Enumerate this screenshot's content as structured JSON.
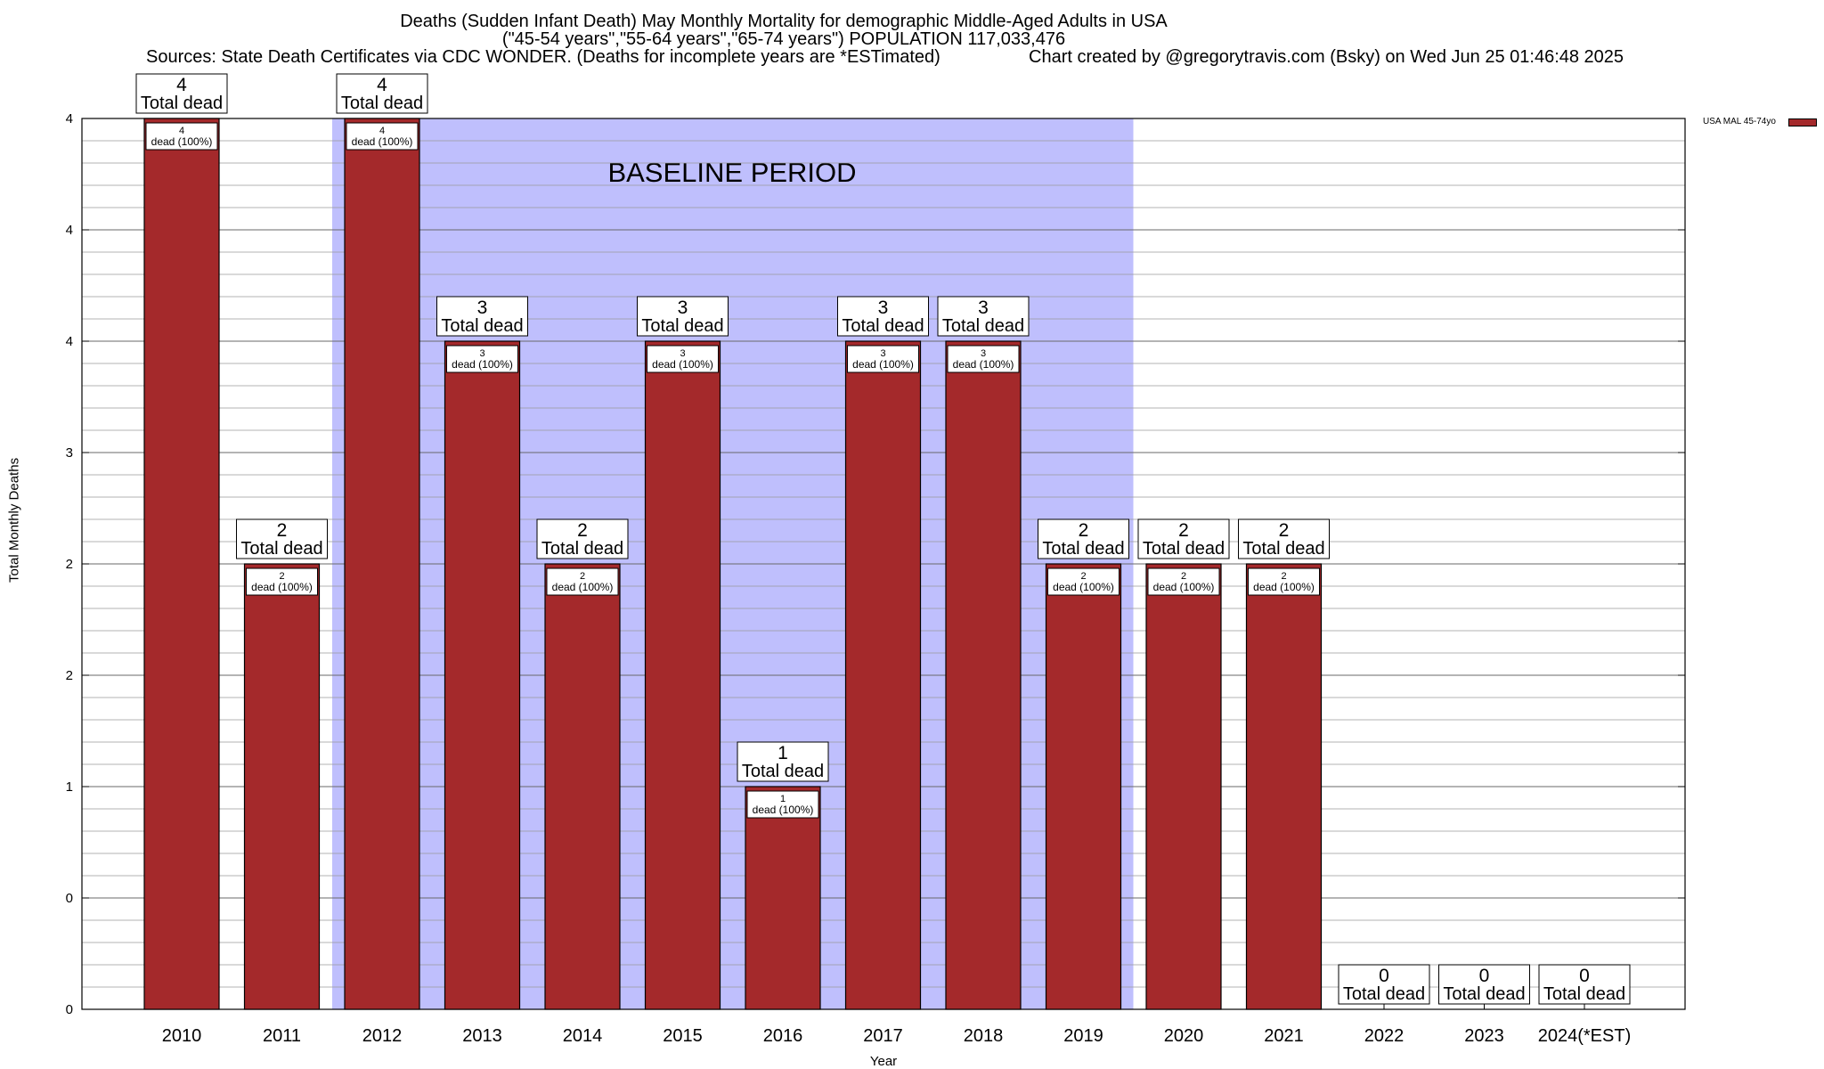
{
  "title_lines": [
    "Deaths (Sudden Infant Death) May Monthly Mortality for demographic Middle-Aged Adults in USA",
    "(\"45-54 years\",\"55-64 years\",\"65-74 years\") POPULATION 117,033,476",
    "Sources: State Death Certificates via CDC WONDER. (Deaths for incomplete years are *ESTimated)",
    "Chart created by @gregorytravis.com (Bsky) on Wed Jun 25 01:46:48 2025"
  ],
  "legend": {
    "label": "USA MAL 45-74yo",
    "color": "#a4292b"
  },
  "chart_data": {
    "type": "bar",
    "xlabel": "Year",
    "ylabel": "Total Monthly Deaths",
    "ylim": [
      0,
      4
    ],
    "ytick_labels": [
      "0",
      "0",
      "1",
      "2",
      "2",
      "3",
      "4",
      "4"
    ],
    "categories": [
      "2010",
      "2011",
      "2012",
      "2013",
      "2014",
      "2015",
      "2016",
      "2017",
      "2018",
      "2019",
      "2020",
      "2021",
      "2022",
      "2023",
      "2024(*EST)"
    ],
    "series": [
      {
        "name": "USA MAL 45-74yo",
        "values": [
          4,
          2,
          4,
          3,
          2,
          3,
          1,
          3,
          3,
          2,
          2,
          2,
          0,
          0,
          0
        ]
      }
    ],
    "total_label_suffix": "Total dead",
    "inner_label_suffix": "dead (100%)",
    "baseline": {
      "label": "BASELINE PERIOD",
      "start": "2012",
      "end": "2019",
      "color": "#bfbffd"
    },
    "bar_color": "#a4292b",
    "grid": true
  }
}
